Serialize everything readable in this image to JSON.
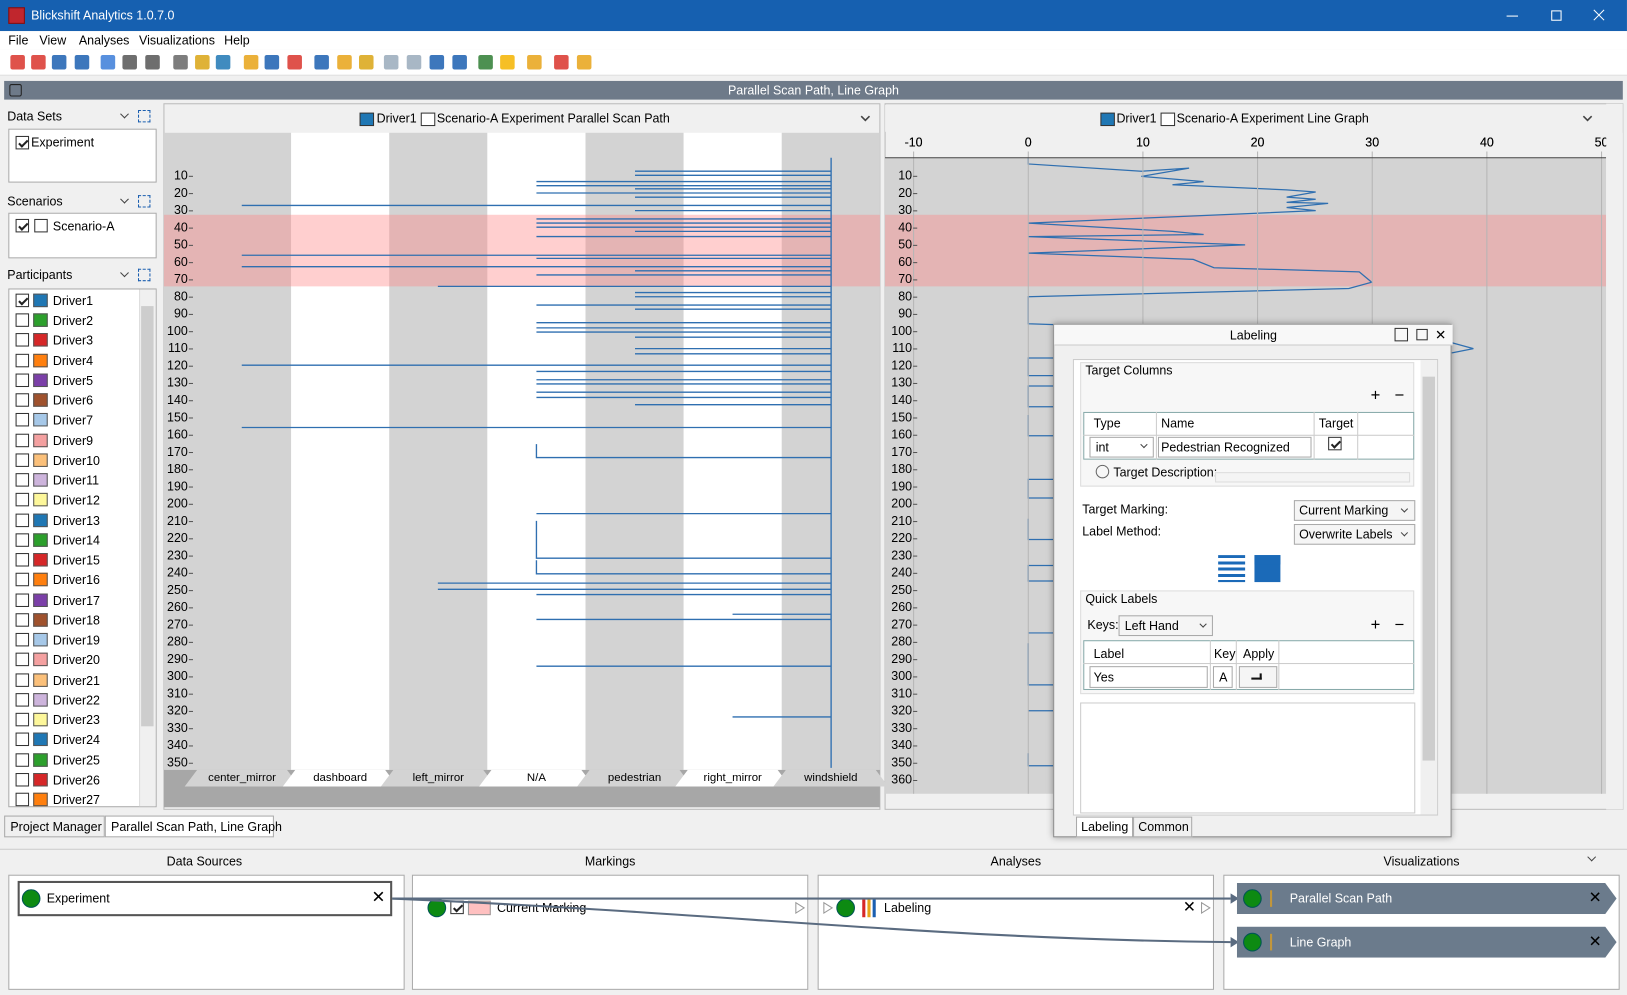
{
  "window": {
    "title": "Blickshift Analytics 1.0.7.0"
  },
  "menu": [
    "File",
    "View",
    "Analyses",
    "Visualizations",
    "Help"
  ],
  "workspace_title": "Parallel Scan Path, Line Graph",
  "sidebar": {
    "data_sets": {
      "title": "Data Sets",
      "items": [
        {
          "name": "Experiment",
          "checked": true
        }
      ]
    },
    "scenarios": {
      "title": "Scenarios",
      "items": [
        {
          "name": "Scenario-A",
          "checked": true
        }
      ]
    },
    "participants": {
      "title": "Participants",
      "items": [
        {
          "name": "Driver1",
          "color": "#1f77b4",
          "checked": true
        },
        {
          "name": "Driver2",
          "color": "#2ca02c",
          "checked": false
        },
        {
          "name": "Driver3",
          "color": "#d62728",
          "checked": false
        },
        {
          "name": "Driver4",
          "color": "#ff7f0e",
          "checked": false
        },
        {
          "name": "Driver5",
          "color": "#7b3fa8",
          "checked": false
        },
        {
          "name": "Driver6",
          "color": "#a0522d",
          "checked": false
        },
        {
          "name": "Driver7",
          "color": "#a6c8e8",
          "checked": false
        },
        {
          "name": "Driver9",
          "color": "#f4a0a0",
          "checked": false
        },
        {
          "name": "Driver10",
          "color": "#fbc07a",
          "checked": false
        },
        {
          "name": "Driver11",
          "color": "#cdb4dc",
          "checked": false
        },
        {
          "name": "Driver12",
          "color": "#fdf79a",
          "checked": false
        },
        {
          "name": "Driver13",
          "color": "#1f77b4",
          "checked": false
        },
        {
          "name": "Driver14",
          "color": "#2ca02c",
          "checked": false
        },
        {
          "name": "Driver15",
          "color": "#d62728",
          "checked": false
        },
        {
          "name": "Driver16",
          "color": "#ff7f0e",
          "checked": false
        },
        {
          "name": "Driver17",
          "color": "#7b3fa8",
          "checked": false
        },
        {
          "name": "Driver18",
          "color": "#a0522d",
          "checked": false
        },
        {
          "name": "Driver19",
          "color": "#a6c8e8",
          "checked": false
        },
        {
          "name": "Driver20",
          "color": "#f4a0a0",
          "checked": false
        },
        {
          "name": "Driver21",
          "color": "#fbc07a",
          "checked": false
        },
        {
          "name": "Driver22",
          "color": "#cdb4dc",
          "checked": false
        },
        {
          "name": "Driver23",
          "color": "#fdf79a",
          "checked": false
        },
        {
          "name": "Driver24",
          "color": "#1f77b4",
          "checked": false
        },
        {
          "name": "Driver25",
          "color": "#2ca02c",
          "checked": false
        },
        {
          "name": "Driver26",
          "color": "#d62728",
          "checked": false
        },
        {
          "name": "Driver27",
          "color": "#ff7f0e",
          "checked": false
        }
      ]
    }
  },
  "scan_path": {
    "type": "parallel-scan-path",
    "legend": [
      "Driver1",
      "Scenario-A Experiment Parallel Scan Path"
    ],
    "columns": [
      "center_mirror",
      "dashboard",
      "left_mirror",
      "N/A",
      "pedestrian",
      "right_mirror",
      "windshield"
    ],
    "yticks": [
      10,
      20,
      30,
      40,
      50,
      60,
      70,
      80,
      90,
      100,
      110,
      120,
      130,
      140,
      150,
      160,
      170,
      180,
      190,
      200,
      210,
      220,
      230,
      240,
      250,
      260,
      270,
      280,
      290,
      300,
      310,
      320,
      330,
      340,
      350
    ]
  },
  "line_graph": {
    "type": "line",
    "legend": [
      "Driver1",
      "Scenario-A Experiment Line Graph"
    ],
    "xticks": [
      -10,
      0,
      10,
      20,
      30,
      40,
      50
    ],
    "yticks": [
      10,
      20,
      30,
      40,
      50,
      60,
      70,
      80,
      90,
      100,
      110,
      120,
      130,
      140,
      150,
      160,
      170,
      180,
      190,
      200,
      210,
      220,
      230,
      240,
      250,
      260,
      270,
      280,
      290,
      300,
      310,
      320,
      330,
      340,
      350,
      360
    ]
  },
  "labeling": {
    "title": "Labeling",
    "target_columns": "Target Columns",
    "headers": [
      "Type",
      "Name",
      "Target"
    ],
    "row": {
      "type": "int",
      "name": "Pedestrian Recognized",
      "target": true
    },
    "target_description": "Target Description:",
    "target_marking": {
      "label": "Target Marking:",
      "value": "Current Marking"
    },
    "label_method": {
      "label": "Label Method:",
      "value": "Overwrite Labels"
    },
    "quick_labels": "Quick Labels",
    "keys": {
      "label": "Keys:",
      "value": "Left Hand"
    },
    "ql_headers": [
      "Label",
      "Key",
      "Apply"
    ],
    "ql_row": {
      "label": "Yes",
      "key": "A"
    },
    "tabs": [
      "Labeling",
      "Common"
    ]
  },
  "tabs": [
    "Project Manager",
    "Parallel Scan Path, Line Graph"
  ],
  "pipeline": {
    "headers": [
      "Data Sources",
      "Markings",
      "Analyses",
      "Visualizations"
    ],
    "data_sources": [
      "Experiment"
    ],
    "markings": [
      "Current Marking"
    ],
    "analyses": [
      "Labeling"
    ],
    "visualizations": [
      "Parallel Scan Path",
      "Line Graph"
    ]
  }
}
